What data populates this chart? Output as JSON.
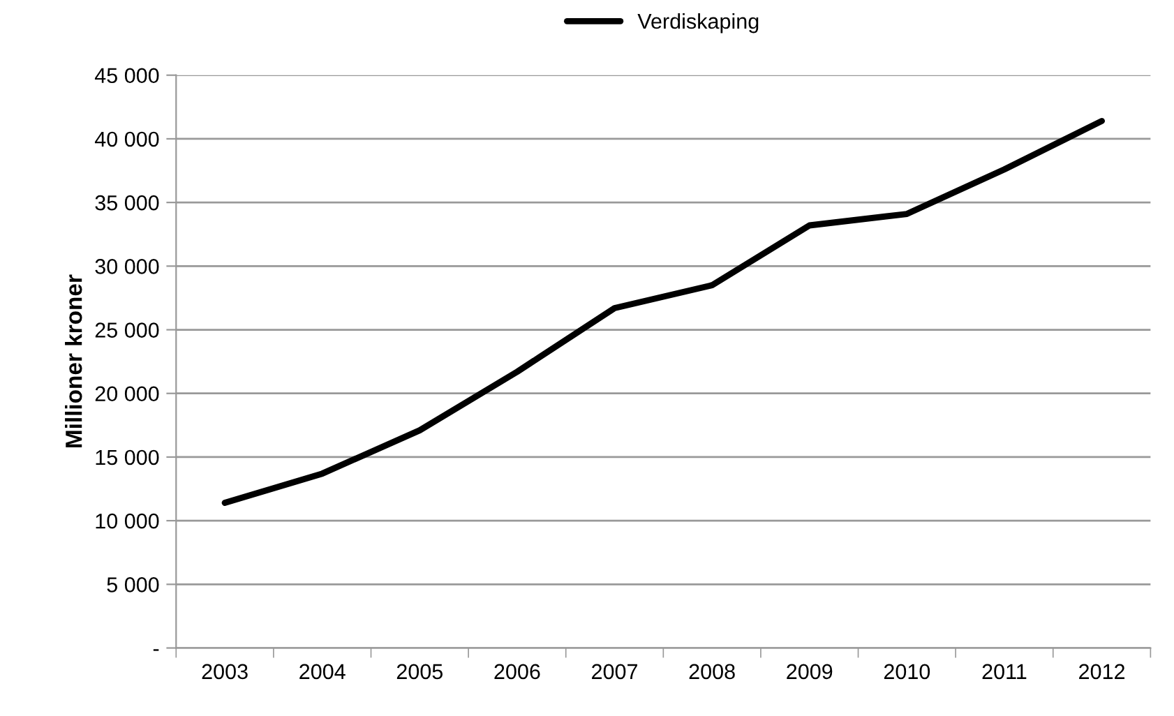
{
  "chart_data": {
    "type": "line",
    "ylabel": "Millioner kroner",
    "categories": [
      "2003",
      "2004",
      "2005",
      "2006",
      "2007",
      "2008",
      "2009",
      "2010",
      "2011",
      "2012"
    ],
    "series": [
      {
        "name": "Verdiskaping",
        "color": "#000000",
        "values": [
          11400,
          13700,
          17100,
          21700,
          26700,
          28500,
          33200,
          34100,
          37600,
          41400
        ]
      }
    ],
    "ylim": [
      0,
      45000
    ],
    "yticks": [
      {
        "value": 0,
        "label": "-"
      },
      {
        "value": 5000,
        "label": "5 000"
      },
      {
        "value": 10000,
        "label": "10 000"
      },
      {
        "value": 15000,
        "label": "15 000"
      },
      {
        "value": 20000,
        "label": "20 000"
      },
      {
        "value": 25000,
        "label": "25 000"
      },
      {
        "value": 30000,
        "label": "30 000"
      },
      {
        "value": 35000,
        "label": "35 000"
      },
      {
        "value": 40000,
        "label": "40 000"
      },
      {
        "value": 45000,
        "label": "45 000"
      }
    ],
    "grid": "y",
    "legend": "top",
    "marker": "none",
    "line_style": "solid"
  }
}
